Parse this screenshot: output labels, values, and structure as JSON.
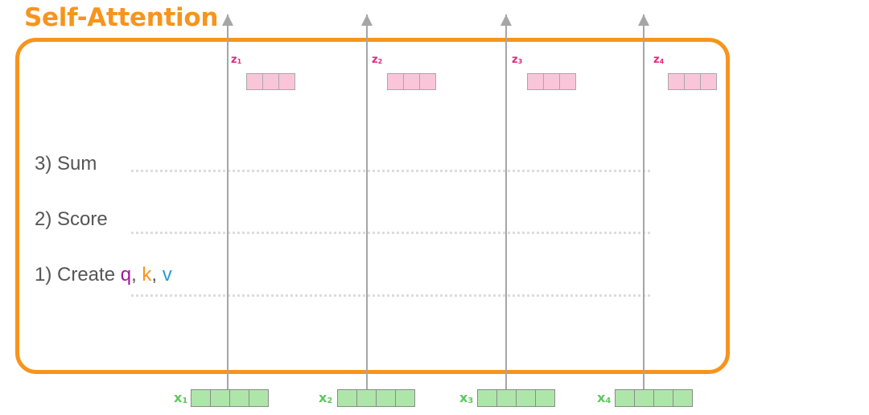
{
  "title": "Self-Attention",
  "colors": {
    "frame": "#F7941D",
    "title": "#F7941D",
    "step_text": "#555555",
    "q": "#A3159A",
    "k": "#F7941D",
    "v": "#2B9BDA",
    "z_label": "#E0287D",
    "z_vector": "#FAC5D8",
    "x_label": "#5DC85D",
    "x_vector": "#AEE6A9",
    "arrow": "#A6A6A6",
    "dotted_line": "#DDDDDD"
  },
  "steps": {
    "sum": "3) Sum",
    "score": "2) Score",
    "create": {
      "prefix": "1) Create ",
      "q": "q",
      "sep1": ", ",
      "k": "k",
      "sep2": ", ",
      "v": "v"
    }
  },
  "outputs": [
    {
      "letter": "z",
      "sub": "1"
    },
    {
      "letter": "z",
      "sub": "2"
    },
    {
      "letter": "z",
      "sub": "3"
    },
    {
      "letter": "z",
      "sub": "4"
    }
  ],
  "inputs": [
    {
      "letter": "x",
      "sub": "1"
    },
    {
      "letter": "x",
      "sub": "2"
    },
    {
      "letter": "x",
      "sub": "3"
    },
    {
      "letter": "x",
      "sub": "4"
    }
  ],
  "vector_cells": {
    "output": 3,
    "input": 4
  },
  "icons": [
    "arrow-up-icon"
  ]
}
